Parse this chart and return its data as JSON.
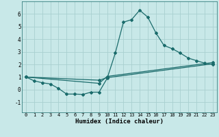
{
  "title": "",
  "xlabel": "Humidex (Indice chaleur)",
  "xlim": [
    -0.5,
    23.5
  ],
  "ylim": [
    -1.8,
    7.0
  ],
  "yticks": [
    -1,
    0,
    1,
    2,
    3,
    4,
    5,
    6
  ],
  "xticks": [
    0,
    1,
    2,
    3,
    4,
    5,
    6,
    7,
    8,
    9,
    10,
    11,
    12,
    13,
    14,
    15,
    16,
    17,
    18,
    19,
    20,
    21,
    22,
    23
  ],
  "bg_color": "#c8e8e8",
  "plot_bg": "#c8e8e8",
  "line_color": "#1a6b6b",
  "grid_color": "#a8d0d0",
  "axis_bg": "#2a5a5a",
  "xlabel_color": "#000000",
  "line1_x": [
    0,
    1,
    2,
    3,
    4,
    5,
    6,
    7,
    8,
    9,
    10,
    11,
    12,
    13,
    14,
    15,
    16,
    17,
    18,
    19,
    20,
    21,
    22,
    23
  ],
  "line1_y": [
    1.0,
    0.7,
    0.55,
    0.45,
    0.1,
    -0.35,
    -0.35,
    -0.38,
    -0.2,
    -0.2,
    0.9,
    2.9,
    5.35,
    5.55,
    6.3,
    5.75,
    4.5,
    3.5,
    3.25,
    2.9,
    2.5,
    2.3,
    2.1,
    2.0
  ],
  "line2_x": [
    0,
    9,
    10,
    23
  ],
  "line2_y": [
    1.0,
    0.75,
    0.95,
    2.05
  ],
  "line3_x": [
    0,
    9,
    10,
    23
  ],
  "line3_y": [
    1.0,
    0.5,
    1.05,
    2.15
  ]
}
